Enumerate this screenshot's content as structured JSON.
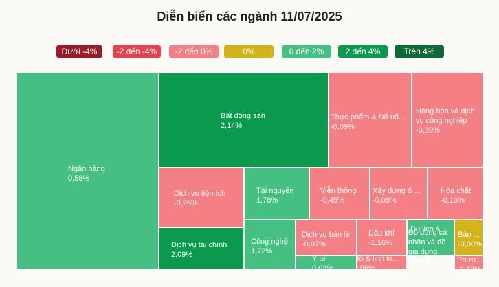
{
  "header": {
    "title": "Diễn biến các ngành 11/07/2025"
  },
  "legend": [
    {
      "label": "Dưới -4%",
      "color": "#9b1c24"
    },
    {
      "label": "-2 đến -4%",
      "color": "#e0454c"
    },
    {
      "label": "-2 đến 0%",
      "color": "#f47f84"
    },
    {
      "label": "0%",
      "color": "#d4b21c"
    },
    {
      "label": "0 đến 2%",
      "color": "#46c082"
    },
    {
      "label": "2 đến 4%",
      "color": "#0b9a4d"
    },
    {
      "label": "Trên 4%",
      "color": "#0d6a36"
    }
  ],
  "chart_data": {
    "type": "treemap",
    "title": "Diễn biến các ngành 11/07/2025",
    "items": [
      {
        "name": "Ngân hàng",
        "value_text": "0,58%",
        "change_pct": 0.58,
        "color": "#46c082"
      },
      {
        "name": "Bất động sản",
        "value_text": "2,14%",
        "change_pct": 2.14,
        "color": "#0b9a4d"
      },
      {
        "name": "Thực phẩm & Đồ uố...",
        "value_text": "-0,09%",
        "change_pct": -0.09,
        "color": "#f47f84"
      },
      {
        "name": "Hàng hóa và dịch vụ công nghiệp",
        "value_text": "-0,39%",
        "change_pct": -0.39,
        "color": "#f47f84"
      },
      {
        "name": "Dịch vụ tiện ích",
        "value_text": "-0,25%",
        "change_pct": -0.25,
        "color": "#f47f84"
      },
      {
        "name": "Tài nguyên",
        "value_text": "1,78%",
        "change_pct": 1.78,
        "color": "#46c082"
      },
      {
        "name": "Viễn thông",
        "value_text": "-0,45%",
        "change_pct": -0.45,
        "color": "#f47f84"
      },
      {
        "name": "Xây dựng & ...",
        "value_text": "-0,08%",
        "change_pct": -0.08,
        "color": "#f47f84"
      },
      {
        "name": "Hóa chất",
        "value_text": "-0,10%",
        "change_pct": -0.1,
        "color": "#f47f84"
      },
      {
        "name": "Dịch vụ tài chính",
        "value_text": "2,09%",
        "change_pct": 2.09,
        "color": "#0b9a4d"
      },
      {
        "name": "Công nghệ",
        "value_text": "1,72%",
        "change_pct": 1.72,
        "color": "#46c082"
      },
      {
        "name": "Dịch vụ bán lẻ",
        "value_text": "-0,07%",
        "change_pct": -0.07,
        "color": "#f47f84"
      },
      {
        "name": "Dầu khí",
        "value_text": "-1,16%",
        "change_pct": -1.16,
        "color": "#f47f84"
      },
      {
        "name": "Du lịch & ...",
        "value_text": "",
        "change_pct": null,
        "color": "#46c082"
      },
      {
        "name": "Đồ dùng cá nhân và đồ gia dụng",
        "value_text": "0,25%",
        "change_pct": 0.25,
        "color": "#46c082"
      },
      {
        "name": "Bảo ...",
        "value_text": "-0,00%",
        "change_pct": -0.0,
        "color": "#d4b21c"
      },
      {
        "name": "Y tế",
        "value_text": "0,03%",
        "change_pct": 0.03,
        "color": "#46c082"
      },
      {
        "name": "Ôtô & linh ki...",
        "value_text": "-0,06%",
        "change_pct": -0.06,
        "color": "#f47f84"
      },
      {
        "name": "Phươ...",
        "value_text": "-0,42%",
        "change_pct": -0.42,
        "color": "#f47f84"
      }
    ]
  }
}
